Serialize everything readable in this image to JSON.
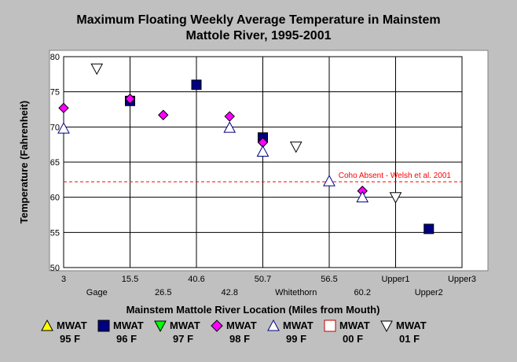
{
  "chart_data": {
    "type": "scatter",
    "title": "Maximum Floating Weekly Average Temperature in Mainstem",
    "subtitle": "Mattole River, 1995-2001",
    "xlabel": "Mainstem Mattole River Location (Miles from Mouth)",
    "ylabel": "Temperature (Fahrenheit)",
    "ylim": [
      50,
      80
    ],
    "yticks": [
      50,
      55,
      60,
      65,
      70,
      75,
      80
    ],
    "grid": true,
    "legend_position": "bottom",
    "categories": [
      "3",
      "Gage",
      "15.5",
      "26.5",
      "40.6",
      "42.8",
      "50.7",
      "Whitethorn",
      "56.5",
      "60.2",
      "Upper1",
      "Upper2",
      "Upper3"
    ],
    "reference_line": {
      "label": "Coho Absent - Welsh et al. 2001",
      "y": 62.2,
      "color": "#ff0000"
    },
    "series": [
      {
        "name": "MWAT 95 F",
        "line1": "MWAT",
        "line2": "95 F",
        "marker": "triangle-up",
        "fill": "#ffff00",
        "stroke": "#000000",
        "points": []
      },
      {
        "name": "MWAT 96 F",
        "line1": "MWAT",
        "line2": "96 F",
        "marker": "square",
        "fill": "#000080",
        "stroke": "#000000",
        "points": [
          {
            "x": "15.5",
            "y": 73.7
          },
          {
            "x": "40.6",
            "y": 76.0
          },
          {
            "x": "50.7",
            "y": 68.5
          },
          {
            "x": "Upper2",
            "y": 55.5
          }
        ]
      },
      {
        "name": "MWAT 97 F",
        "line1": "MWAT",
        "line2": "97 F",
        "marker": "triangle-down",
        "fill": "#00ff00",
        "stroke": "#000000",
        "points": []
      },
      {
        "name": "MWAT 98 F",
        "line1": "MWAT",
        "line2": "98 F",
        "marker": "diamond",
        "fill": "#ff00ff",
        "stroke": "#000000",
        "points": [
          {
            "x": "3",
            "y": 72.7
          },
          {
            "x": "15.5",
            "y": 74.0
          },
          {
            "x": "26.5",
            "y": 71.7
          },
          {
            "x": "42.8",
            "y": 71.5
          },
          {
            "x": "50.7",
            "y": 67.8
          },
          {
            "x": "60.2",
            "y": 60.9
          }
        ]
      },
      {
        "name": "MWAT 99 F",
        "line1": "MWAT",
        "line2": "99 F",
        "marker": "triangle-up",
        "fill": "#ffffff",
        "stroke": "#000080",
        "points": [
          {
            "x": "3",
            "y": 69.8
          },
          {
            "x": "42.8",
            "y": 69.9
          },
          {
            "x": "50.7",
            "y": 66.5
          },
          {
            "x": "56.5",
            "y": 62.3
          },
          {
            "x": "60.2",
            "y": 60.0
          }
        ]
      },
      {
        "name": "MWAT 00 F",
        "line1": "MWAT",
        "line2": "00 F",
        "marker": "square",
        "fill": "#ffffff",
        "stroke": "#c00000",
        "points": []
      },
      {
        "name": "MWAT 01 F",
        "line1": "MWAT",
        "line2": "01 F",
        "marker": "triangle-down",
        "fill": "#ffffff",
        "stroke": "#000000",
        "points": [
          {
            "x": "Gage",
            "y": 78.3
          },
          {
            "x": "Whitethorn",
            "y": 67.2
          },
          {
            "x": "Upper1",
            "y": 60.0
          }
        ]
      }
    ]
  }
}
